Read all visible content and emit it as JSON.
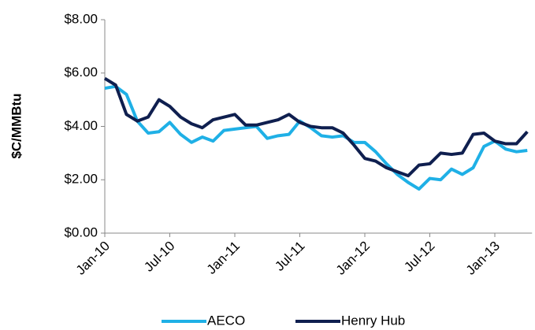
{
  "chart_data": {
    "type": "line",
    "y_label": "$C/MMBtu",
    "categories": [
      "Jan-10",
      null,
      null,
      null,
      null,
      null,
      "Jul-10",
      null,
      null,
      null,
      null,
      null,
      "Jan-11",
      null,
      null,
      null,
      null,
      null,
      "Jul-11",
      null,
      null,
      null,
      null,
      null,
      "Jan-12",
      null,
      null,
      null,
      null,
      null,
      "Jul-12",
      null,
      null,
      null,
      null,
      null,
      "Jan-13",
      null,
      null,
      null
    ],
    "series": [
      {
        "name": "AECO",
        "color": "#1fb0e6",
        "values": [
          5.43,
          5.5,
          5.2,
          4.2,
          3.75,
          3.8,
          4.15,
          3.7,
          3.4,
          3.6,
          3.45,
          3.85,
          3.9,
          3.95,
          4.0,
          3.55,
          3.65,
          3.7,
          4.2,
          3.95,
          3.65,
          3.6,
          3.65,
          3.4,
          3.4,
          3.05,
          2.6,
          2.2,
          1.9,
          1.65,
          2.05,
          2.0,
          2.4,
          2.2,
          2.45,
          3.25,
          3.45,
          3.15,
          3.05,
          3.1
        ]
      },
      {
        "name": "Henry Hub",
        "color": "#0f1f4f",
        "values": [
          5.8,
          5.55,
          4.45,
          4.2,
          4.35,
          5.0,
          4.75,
          4.35,
          4.1,
          3.95,
          4.25,
          4.35,
          4.45,
          4.05,
          4.05,
          4.15,
          4.25,
          4.45,
          4.15,
          4.0,
          3.95,
          3.95,
          3.75,
          3.3,
          2.8,
          2.7,
          2.45,
          2.3,
          2.15,
          2.55,
          2.6,
          3.0,
          2.95,
          3.0,
          3.7,
          3.75,
          3.45,
          3.35,
          3.35,
          3.8
        ]
      }
    ],
    "ylim": [
      0,
      8
    ],
    "yticks": [
      {
        "value": 0,
        "label": "$0.00"
      },
      {
        "value": 2,
        "label": "$2.00"
      },
      {
        "value": 4,
        "label": "$4.00"
      },
      {
        "value": 6,
        "label": "$6.00"
      },
      {
        "value": 8,
        "label": "$8.00"
      }
    ],
    "legend": "bottom"
  }
}
